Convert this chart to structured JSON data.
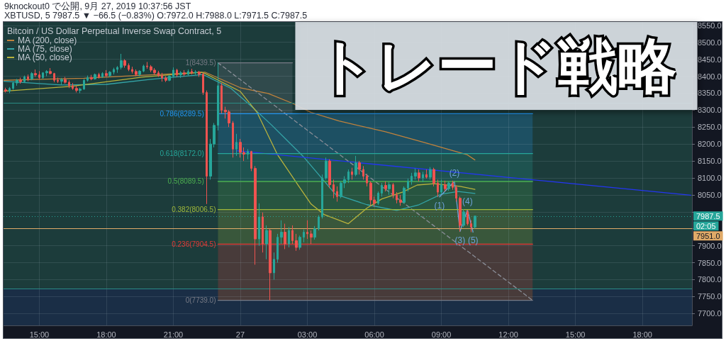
{
  "chart_data": {
    "type": "candlestick",
    "title": "トレード戦略",
    "subtitle": "Bitcoin / US Dollar Perpetual Inverse Swap Contract, 5",
    "x": [
      "2019-09-26T13:30",
      "2019-09-26T13:40",
      "2019-09-26T13:50",
      "2019-09-26T14:00",
      "2019-09-26T14:10",
      "2019-09-26T14:20",
      "2019-09-26T14:30",
      "2019-09-26T14:40",
      "2019-09-26T14:50",
      "2019-09-26T15:00",
      "2019-09-26T15:10",
      "2019-09-26T15:20",
      "2019-09-26T15:30",
      "2019-09-26T15:40",
      "2019-09-26T15:50",
      "2019-09-26T16:00",
      "2019-09-26T16:10",
      "2019-09-26T16:20",
      "2019-09-26T16:30",
      "2019-09-26T16:40",
      "2019-09-26T16:50",
      "2019-09-26T17:00",
      "2019-09-26T17:10",
      "2019-09-26T17:20",
      "2019-09-26T17:30",
      "2019-09-26T17:40",
      "2019-09-26T17:50",
      "2019-09-26T18:00",
      "2019-09-26T18:10",
      "2019-09-26T18:20",
      "2019-09-26T18:30",
      "2019-09-26T18:40",
      "2019-09-26T18:50",
      "2019-09-26T19:00",
      "2019-09-26T19:10",
      "2019-09-26T19:20",
      "2019-09-26T19:30",
      "2019-09-26T19:40",
      "2019-09-26T19:50",
      "2019-09-26T20:00",
      "2019-09-26T20:10",
      "2019-09-26T20:20",
      "2019-09-26T20:30",
      "2019-09-26T20:40",
      "2019-09-26T20:50",
      "2019-09-26T21:00",
      "2019-09-26T21:10",
      "2019-09-26T21:20",
      "2019-09-26T21:30",
      "2019-09-26T21:40",
      "2019-09-26T21:50",
      "2019-09-26T22:00",
      "2019-09-26T22:10",
      "2019-09-26T22:20",
      "2019-09-26T22:30",
      "2019-09-26T22:40",
      "2019-09-26T22:50",
      "2019-09-26T23:00",
      "2019-09-26T23:10",
      "2019-09-26T23:20",
      "2019-09-26T23:30",
      "2019-09-26T23:40",
      "2019-09-26T23:50",
      "2019-09-27T00:00",
      "2019-09-27T00:10",
      "2019-09-27T00:20",
      "2019-09-27T00:30",
      "2019-09-27T00:40",
      "2019-09-27T00:50",
      "2019-09-27T01:00",
      "2019-09-27T01:10",
      "2019-09-27T01:20",
      "2019-09-27T01:30",
      "2019-09-27T01:40",
      "2019-09-27T01:50",
      "2019-09-27T02:00",
      "2019-09-27T02:10",
      "2019-09-27T02:20",
      "2019-09-27T02:30",
      "2019-09-27T02:40",
      "2019-09-27T02:50",
      "2019-09-27T03:00",
      "2019-09-27T03:10",
      "2019-09-27T03:20",
      "2019-09-27T03:30",
      "2019-09-27T03:40",
      "2019-09-27T03:50",
      "2019-09-27T04:00",
      "2019-09-27T04:10",
      "2019-09-27T04:20",
      "2019-09-27T04:30",
      "2019-09-27T04:40",
      "2019-09-27T04:50",
      "2019-09-27T05:00",
      "2019-09-27T05:10",
      "2019-09-27T05:20",
      "2019-09-27T05:30",
      "2019-09-27T05:40",
      "2019-09-27T05:50",
      "2019-09-27T06:00",
      "2019-09-27T06:10",
      "2019-09-27T06:20",
      "2019-09-27T06:30",
      "2019-09-27T06:40",
      "2019-09-27T06:50",
      "2019-09-27T07:00",
      "2019-09-27T07:10",
      "2019-09-27T07:20",
      "2019-09-27T07:30",
      "2019-09-27T07:40",
      "2019-09-27T07:50",
      "2019-09-27T08:00",
      "2019-09-27T08:10",
      "2019-09-27T08:20",
      "2019-09-27T08:30",
      "2019-09-27T08:40",
      "2019-09-27T08:50",
      "2019-09-27T09:00",
      "2019-09-27T09:10",
      "2019-09-27T09:20",
      "2019-09-27T09:30",
      "2019-09-27T09:40",
      "2019-09-27T09:50",
      "2019-09-27T10:00",
      "2019-09-27T10:10",
      "2019-09-27T10:20",
      "2019-09-27T10:30"
    ],
    "ohlc": [
      [
        8360,
        8366,
        8352,
        8356
      ],
      [
        8356,
        8368,
        8350,
        8364
      ],
      [
        8364,
        8385,
        8360,
        8380
      ],
      [
        8380,
        8392,
        8372,
        8388
      ],
      [
        8388,
        8396,
        8378,
        8384
      ],
      [
        8384,
        8402,
        8380,
        8398
      ],
      [
        8398,
        8405,
        8385,
        8392
      ],
      [
        8392,
        8412,
        8388,
        8408
      ],
      [
        8408,
        8420,
        8398,
        8404
      ],
      [
        8404,
        8415,
        8390,
        8396
      ],
      [
        8396,
        8412,
        8392,
        8410
      ],
      [
        8410,
        8418,
        8400,
        8414
      ],
      [
        8414,
        8424,
        8405,
        8408
      ],
      [
        8408,
        8410,
        8382,
        8388
      ],
      [
        8388,
        8396,
        8380,
        8385
      ],
      [
        8385,
        8395,
        8375,
        8390
      ],
      [
        8390,
        8398,
        8378,
        8382
      ],
      [
        8382,
        8388,
        8365,
        8372
      ],
      [
        8372,
        8380,
        8360,
        8364
      ],
      [
        8364,
        8372,
        8352,
        8358
      ],
      [
        8358,
        8366,
        8350,
        8362
      ],
      [
        8362,
        8392,
        8360,
        8388
      ],
      [
        8388,
        8402,
        8384,
        8396
      ],
      [
        8396,
        8404,
        8388,
        8392
      ],
      [
        8392,
        8408,
        8390,
        8405
      ],
      [
        8405,
        8410,
        8393,
        8398
      ],
      [
        8398,
        8412,
        8395,
        8408
      ],
      [
        8408,
        8418,
        8398,
        8402
      ],
      [
        8402,
        8415,
        8397,
        8412
      ],
      [
        8412,
        8425,
        8405,
        8420
      ],
      [
        8420,
        8430,
        8410,
        8426
      ],
      [
        8426,
        8466,
        8420,
        8446
      ],
      [
        8446,
        8450,
        8425,
        8432
      ],
      [
        8432,
        8438,
        8415,
        8420
      ],
      [
        8420,
        8428,
        8408,
        8414
      ],
      [
        8414,
        8420,
        8400,
        8405
      ],
      [
        8405,
        8418,
        8400,
        8415
      ],
      [
        8415,
        8434,
        8412,
        8430
      ],
      [
        8430,
        8442,
        8422,
        8428
      ],
      [
        8428,
        8433,
        8412,
        8418
      ],
      [
        8418,
        8424,
        8404,
        8410
      ],
      [
        8410,
        8416,
        8398,
        8402
      ],
      [
        8402,
        8410,
        8384,
        8395
      ],
      [
        8395,
        8400,
        8383,
        8388
      ],
      [
        8388,
        8405,
        8385,
        8400
      ],
      [
        8400,
        8426,
        8396,
        8418
      ],
      [
        8418,
        8422,
        8398,
        8404
      ],
      [
        8404,
        8415,
        8395,
        8410
      ],
      [
        8410,
        8418,
        8400,
        8406
      ],
      [
        8406,
        8420,
        8402,
        8414
      ],
      [
        8414,
        8422,
        8405,
        8410
      ],
      [
        8410,
        8418,
        8404,
        8412
      ],
      [
        8412,
        8416,
        8398,
        8406
      ],
      [
        8406,
        8410,
        8345,
        8352
      ],
      [
        8352,
        8358,
        8023,
        8105
      ],
      [
        8105,
        8215,
        8095,
        8200
      ],
      [
        8200,
        8262,
        8190,
        8255
      ],
      [
        8255,
        8439.5,
        8240,
        8372
      ],
      [
        8372,
        8380,
        8290,
        8300
      ],
      [
        8300,
        8310,
        8275,
        8295
      ],
      [
        8295,
        8300,
        8250,
        8262
      ],
      [
        8262,
        8268,
        8160,
        8185
      ],
      [
        8185,
        8230,
        8165,
        8205
      ],
      [
        8205,
        8215,
        8160,
        8175
      ],
      [
        8175,
        8190,
        8150,
        8170
      ],
      [
        8170,
        8185,
        8155,
        8178
      ],
      [
        8178,
        8180,
        8120,
        8128
      ],
      [
        8128,
        8135,
        7844,
        7920
      ],
      [
        7920,
        8025,
        7900,
        7985
      ],
      [
        7985,
        7998,
        7880,
        7905
      ],
      [
        7905,
        7960,
        7860,
        7945
      ],
      [
        7945,
        7950,
        7739,
        7820
      ],
      [
        7820,
        7880,
        7800,
        7860
      ],
      [
        7860,
        7935,
        7850,
        7925
      ],
      [
        7925,
        7975,
        7905,
        7940
      ],
      [
        7940,
        7965,
        7890,
        7905
      ],
      [
        7905,
        7955,
        7895,
        7945
      ],
      [
        7945,
        7960,
        7905,
        7915
      ],
      [
        7915,
        7935,
        7885,
        7895
      ],
      [
        7895,
        7930,
        7888,
        7925
      ],
      [
        7925,
        7948,
        7910,
        7940
      ],
      [
        7940,
        7975,
        7920,
        7935
      ],
      [
        7935,
        7945,
        7905,
        7925
      ],
      [
        7925,
        7958,
        7918,
        7950
      ],
      [
        7950,
        7990,
        7945,
        7985
      ],
      [
        7985,
        8110,
        7980,
        8100
      ],
      [
        8100,
        8160,
        8095,
        8150
      ],
      [
        8150,
        8155,
        8070,
        8080
      ],
      [
        8080,
        8095,
        8040,
        8060
      ],
      [
        8060,
        8075,
        8030,
        8045
      ],
      [
        8045,
        8090,
        8040,
        8085
      ],
      [
        8085,
        8105,
        8070,
        8095
      ],
      [
        8095,
        8125,
        8085,
        8118
      ],
      [
        8118,
        8130,
        8095,
        8110
      ],
      [
        8110,
        8165,
        8105,
        8145
      ],
      [
        8145,
        8150,
        8110,
        8125
      ],
      [
        8125,
        8135,
        8095,
        8105
      ],
      [
        8105,
        8112,
        8075,
        8085
      ],
      [
        8085,
        8090,
        8020,
        8035
      ],
      [
        8035,
        8045,
        8015,
        8025
      ],
      [
        8025,
        8060,
        8020,
        8055
      ],
      [
        8055,
        8085,
        8045,
        8078
      ],
      [
        8078,
        8090,
        8060,
        8068
      ],
      [
        8068,
        8088,
        8050,
        8080
      ],
      [
        8080,
        8085,
        8040,
        8050
      ],
      [
        8050,
        8058,
        8025,
        8035
      ],
      [
        8035,
        8050,
        8018,
        8028
      ],
      [
        8028,
        8075,
        8025,
        8070
      ],
      [
        8070,
        8098,
        8060,
        8090
      ],
      [
        8090,
        8115,
        8080,
        8105
      ],
      [
        8105,
        8128,
        8095,
        8115
      ],
      [
        8115,
        8125,
        8090,
        8100
      ],
      [
        8100,
        8118,
        8088,
        8110
      ],
      [
        8110,
        8125,
        8098,
        8102
      ],
      [
        8102,
        8132,
        8095,
        8125
      ],
      [
        8125,
        8130,
        8075,
        8085
      ],
      [
        8085,
        8095,
        8044,
        8058
      ],
      [
        8058,
        8095,
        8052,
        8080
      ],
      [
        8080,
        8092,
        8060,
        8068
      ],
      [
        8068,
        8090,
        8062,
        8085
      ],
      [
        8085,
        8092,
        8065,
        8072
      ],
      [
        8072,
        8078,
        8030,
        8040
      ],
      [
        8040,
        8045,
        7942,
        7960
      ],
      [
        7960,
        8008,
        7955,
        8000
      ],
      [
        8000,
        8006,
        7960,
        7965
      ],
      [
        7965,
        7975,
        7940,
        7955
      ],
      [
        7955,
        7988,
        7950,
        7987.5
      ]
    ],
    "series": [
      {
        "type": "line",
        "name": "MA (200, close)",
        "color": "#c0823c",
        "x": [
          "2019-09-26T13:25",
          "2019-09-26T15:00",
          "2019-09-26T17:00",
          "2019-09-26T19:00",
          "2019-09-26T21:00",
          "2019-09-26T22:25",
          "2019-09-27T00:00",
          "2019-09-27T01:15",
          "2019-09-27T02:20",
          "2019-09-27T03:10",
          "2019-09-27T04:25",
          "2019-09-27T06:30",
          "2019-09-27T08:15",
          "2019-09-27T10:10",
          "2019-09-27T10:30"
        ],
        "values": [
          8388,
          8391,
          8394,
          8401,
          8407,
          8412,
          8366,
          8349,
          8320,
          8293,
          8268,
          8236,
          8204,
          8168,
          8153
        ]
      },
      {
        "type": "line",
        "name": "MA (75, close)",
        "color": "#34a5a8",
        "x": [
          "2019-09-26T13:25",
          "2019-09-26T16:00",
          "2019-09-26T18:00",
          "2019-09-26T20:00",
          "2019-09-26T22:20",
          "2019-09-26T23:35",
          "2019-09-27T00:40",
          "2019-09-27T01:25",
          "2019-09-27T02:50",
          "2019-09-27T03:35",
          "2019-09-27T04:15",
          "2019-09-27T05:40",
          "2019-09-27T07:00",
          "2019-09-27T08:00",
          "2019-09-27T09:00",
          "2019-09-27T09:45",
          "2019-09-27T10:30"
        ],
        "values": [
          8385,
          8374,
          8376,
          8391,
          8405,
          8364,
          8301,
          8255,
          8162,
          8104,
          8052,
          8021,
          8004,
          8021,
          8052,
          8060,
          8054
        ]
      },
      {
        "type": "line",
        "name": "MA (50, close)",
        "color": "#b8b23c",
        "x": [
          "2019-09-26T13:25",
          "2019-09-26T16:25",
          "2019-09-26T19:35",
          "2019-09-26T22:15",
          "2019-09-26T22:25",
          "2019-09-27T00:00",
          "2019-09-27T00:45",
          "2019-09-27T01:40",
          "2019-09-27T02:35",
          "2019-09-27T03:10",
          "2019-09-27T03:45",
          "2019-09-27T04:50",
          "2019-09-27T05:40",
          "2019-09-27T06:20",
          "2019-09-27T07:15",
          "2019-09-27T07:55",
          "2019-09-27T08:40",
          "2019-09-27T09:50",
          "2019-09-27T10:30"
        ],
        "values": [
          8356,
          8370,
          8397,
          8412,
          8408,
          8355,
          8293,
          8168,
          8079,
          8023,
          7992,
          7965,
          8011,
          8038,
          8058,
          8079,
          8083,
          8075,
          8066
        ]
      },
      {
        "type": "line",
        "color": "#2436f0",
        "x": [
          "2019-09-26T23:50",
          "2019-09-27T20:10"
        ],
        "values": [
          8180,
          8049
        ]
      },
      {
        "type": "line",
        "color": "#8a8e98",
        "line_style": "dashed",
        "x": [
          "2019-09-26T23:00",
          "2019-09-27T13:05"
        ],
        "values": [
          8439.5,
          7739
        ]
      },
      {
        "type": "line",
        "color": "#6fa0d8",
        "x": [
          "2019-09-27T08:55",
          "2019-09-27T09:35",
          "2019-09-27T09:50",
          "2019-09-27T10:10",
          "2019-09-27T10:25"
        ],
        "values": [
          8044,
          8090,
          7942,
          8006,
          7940
        ]
      },
      {
        "type": "line",
        "color": "#787b86",
        "x": [
          "2019-09-26T23:00",
          "2019-09-27T02:20"
        ],
        "values": [
          8439.5,
          8439.5
        ],
        "lower": [
          8289.5,
          8289.5
        ],
        "upper": [
          8439.5,
          8439.5
        ]
      },
      {
        "type": "line",
        "color": "#2196f3",
        "x": [
          "2019-09-26T23:00",
          "2019-09-27T13:05"
        ],
        "values": [
          8289.5,
          8289.5
        ],
        "lower": [
          8172,
          8172
        ],
        "upper": [
          8289.5,
          8289.5
        ]
      },
      {
        "type": "line",
        "color": "#26a69a",
        "x": [
          "2019-09-26T23:00",
          "2019-09-27T13:05"
        ],
        "values": [
          8172,
          8172
        ],
        "lower": [
          8089.5,
          8089.5
        ],
        "upper": [
          8172,
          8172
        ]
      },
      {
        "type": "line",
        "color": "#4caf50",
        "x": [
          "2019-09-26T23:00",
          "2019-09-27T13:05"
        ],
        "values": [
          8089.5,
          8089.5
        ],
        "lower": [
          8006.5,
          8006.5
        ],
        "upper": [
          8089.5,
          8089.5
        ]
      },
      {
        "type": "line",
        "color": "#9fb83a",
        "x": [
          "2019-09-26T23:00",
          "2019-09-27T13:05"
        ],
        "values": [
          8006.5,
          8006.5
        ],
        "lower": [
          7904.5,
          7904.5
        ],
        "upper": [
          8006.5,
          8006.5
        ]
      },
      {
        "type": "line",
        "color": "#e53935",
        "x": [
          "2019-09-26T23:00",
          "2019-09-27T13:05"
        ],
        "values": [
          7904.5,
          7904.5
        ],
        "lower": [
          7739,
          7739
        ],
        "upper": [
          7904.5,
          7904.5
        ]
      },
      {
        "type": "line",
        "color": "#787b86",
        "x": [
          "2019-09-26T23:00",
          "2019-09-27T13:05"
        ],
        "values": [
          7739,
          7739
        ]
      }
    ],
    "xlim": [
      "2019-09-26T13:24",
      "2019-09-27T20:13"
    ],
    "xticks": [
      {
        "value": "2019-09-26T15:00",
        "label": "15:00"
      },
      {
        "value": "2019-09-26T18:00",
        "label": "18:00"
      },
      {
        "value": "2019-09-26T21:00",
        "label": "21:00"
      },
      {
        "value": "2019-09-27T00:00",
        "label": "27"
      },
      {
        "value": "2019-09-27T03:00",
        "label": "03:00"
      },
      {
        "value": "2019-09-27T06:00",
        "label": "06:00"
      },
      {
        "value": "2019-09-27T09:00",
        "label": "09:00"
      },
      {
        "value": "2019-09-27T12:00",
        "label": "12:00"
      },
      {
        "value": "2019-09-27T15:00",
        "label": "15:00"
      },
      {
        "value": "2019-09-27T18:00",
        "label": "18:00"
      }
    ],
    "ylim": [
      7665,
      8560
    ],
    "yticks": [
      {
        "value": 7700,
        "label": "7700.0"
      },
      {
        "value": 7750,
        "label": "7750.0"
      },
      {
        "value": 7800,
        "label": "7800.0"
      },
      {
        "value": 7850,
        "label": "7850.0"
      },
      {
        "value": 7900,
        "label": "7900.0"
      },
      {
        "value": 7950,
        "label": null
      },
      {
        "value": 8000,
        "label": null
      },
      {
        "value": 8050,
        "label": "8050.0"
      },
      {
        "value": 8100,
        "label": "8100.0"
      },
      {
        "value": 8150,
        "label": "8150.0"
      },
      {
        "value": 8200,
        "label": "8200.0"
      },
      {
        "value": 8250,
        "label": "8250.0"
      },
      {
        "value": 8300,
        "label": "8300.0"
      },
      {
        "value": 8350,
        "label": "8350.0"
      },
      {
        "value": 8400,
        "label": "8400.0"
      },
      {
        "value": 8450,
        "label": "8450.0"
      },
      {
        "value": 8500,
        "label": "8500.0"
      },
      {
        "value": 8550,
        "label": "8550.0"
      }
    ],
    "grid": true,
    "legend": "top left",
    "marker": "none",
    "bands": [
      {
        "axis": "y",
        "from": 7774,
        "to": 8560,
        "color": "#1c3c3b"
      }
    ],
    "ref_lines": [
      {
        "axis": "y",
        "value": 8322,
        "color": "#2a8c84"
      },
      {
        "axis": "y",
        "value": 7774,
        "color": "#2a8c84"
      },
      {
        "axis": "y",
        "value": 7987.5,
        "label": "7987.5",
        "color": "#26a69a",
        "line_style": "dotted"
      },
      {
        "axis": "y",
        "value": 7951,
        "label": "7951.0",
        "color": "#e0aa68"
      }
    ],
    "annotations": [
      "9knockout0 で公開, 9月 27, 2019 10:37:56 JST",
      "XBTUSD, 5 7987.5 ▼ −66.5 (−0.83%) O:7972.0 H:7988.0 L:7971.5 C:7987.5",
      "02:05",
      {
        "text": "1(8439.5)",
        "x": "2019-09-26T23:00",
        "y": 8439.5
      },
      {
        "text": "0.786(8289.5)",
        "x": "2019-09-26T23:00",
        "y": 8289.5
      },
      {
        "text": "0.618(8172.0)",
        "x": "2019-09-26T23:00",
        "y": 8172
      },
      {
        "text": "0.5(8089.5)",
        "x": "2019-09-26T23:00",
        "y": 8089.5
      },
      {
        "text": "0.382(8006.5)",
        "x": "2019-09-26T23:00",
        "y": 8006.5
      },
      {
        "text": "0.236(7904.5)",
        "x": "2019-09-26T23:00",
        "y": 7904.5
      },
      {
        "text": "0(7739.0)",
        "x": "2019-09-26T23:00",
        "y": 7739
      },
      {
        "text": "(1)",
        "x": "2019-09-27T08:55",
        "y": 8044
      },
      {
        "text": "(2)",
        "x": "2019-09-27T09:35",
        "y": 8090
      },
      {
        "text": "(3)",
        "x": "2019-09-27T09:50",
        "y": 7942
      },
      {
        "text": "(4)",
        "x": "2019-09-27T10:10",
        "y": 8006
      },
      {
        "text": "(5)",
        "x": "2019-09-27T10:25",
        "y": 7940
      }
    ]
  }
}
